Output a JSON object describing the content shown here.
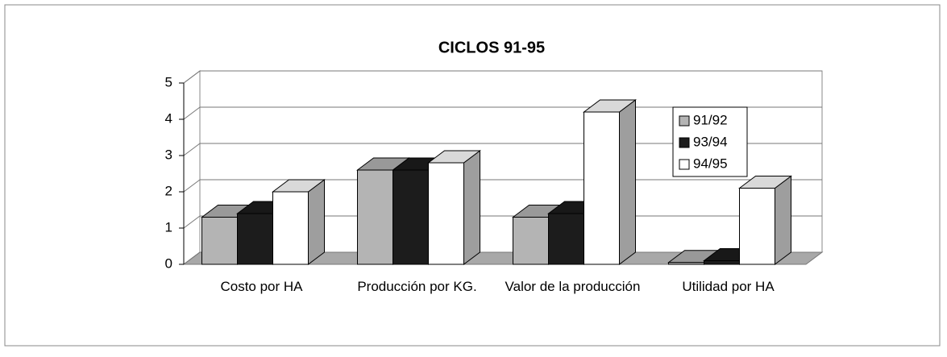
{
  "chart_data": {
    "type": "bar3d",
    "title": "CICLOS 91-95",
    "categories": [
      "Costo por HA",
      "Producción por KG.",
      "Valor de la producción",
      "Utilidad por HA"
    ],
    "series": [
      {
        "name": "91/92",
        "color": "#b4b4b4",
        "values": [
          1.3,
          2.6,
          1.3,
          0.05
        ]
      },
      {
        "name": "93/94",
        "color": "#1c1c1c",
        "values": [
          1.4,
          2.6,
          1.4,
          0.1
        ]
      },
      {
        "name": "94/95",
        "color": "#ffffff",
        "values": [
          2.0,
          2.8,
          4.2,
          2.1
        ]
      }
    ],
    "ylim": [
      0,
      5
    ],
    "yticks": [
      0,
      1,
      2,
      3,
      4,
      5
    ],
    "grid": true,
    "legend": "right"
  }
}
